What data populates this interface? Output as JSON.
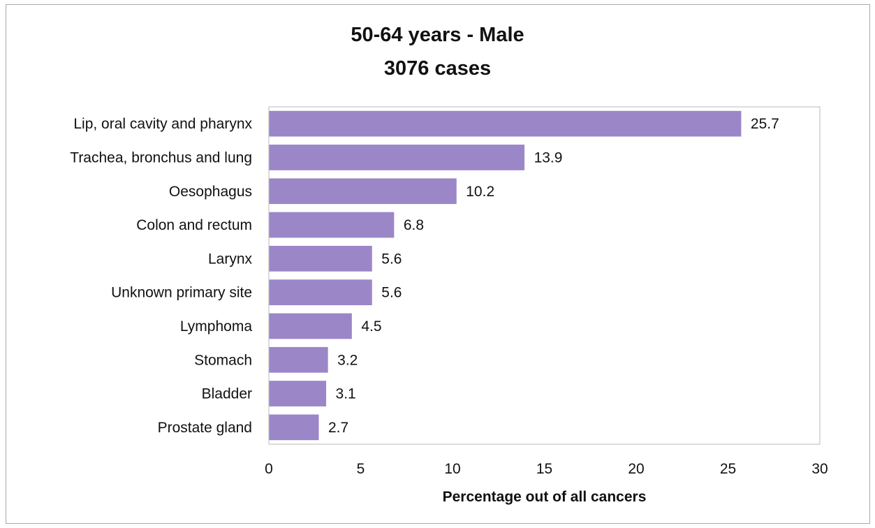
{
  "chart_data": {
    "type": "bar",
    "orientation": "horizontal",
    "title": "50-64 years - Male",
    "subtitle": "3076 cases",
    "xlabel": "Percentage out of all cancers",
    "ylabel": "",
    "xlim": [
      0,
      30
    ],
    "xticks": [
      0,
      5,
      10,
      15,
      20,
      25,
      30
    ],
    "grid": false,
    "legend": "none",
    "bar_color": "#9b86c8",
    "categories": [
      "Lip, oral cavity and pharynx",
      "Trachea, bronchus and lung",
      "Oesophagus",
      "Colon and rectum",
      "Larynx",
      "Unknown primary site",
      "Lymphoma",
      "Stomach",
      "Bladder",
      "Prostate gland"
    ],
    "values": [
      25.7,
      13.9,
      10.2,
      6.8,
      5.6,
      5.6,
      4.5,
      3.2,
      3.1,
      2.7
    ]
  }
}
